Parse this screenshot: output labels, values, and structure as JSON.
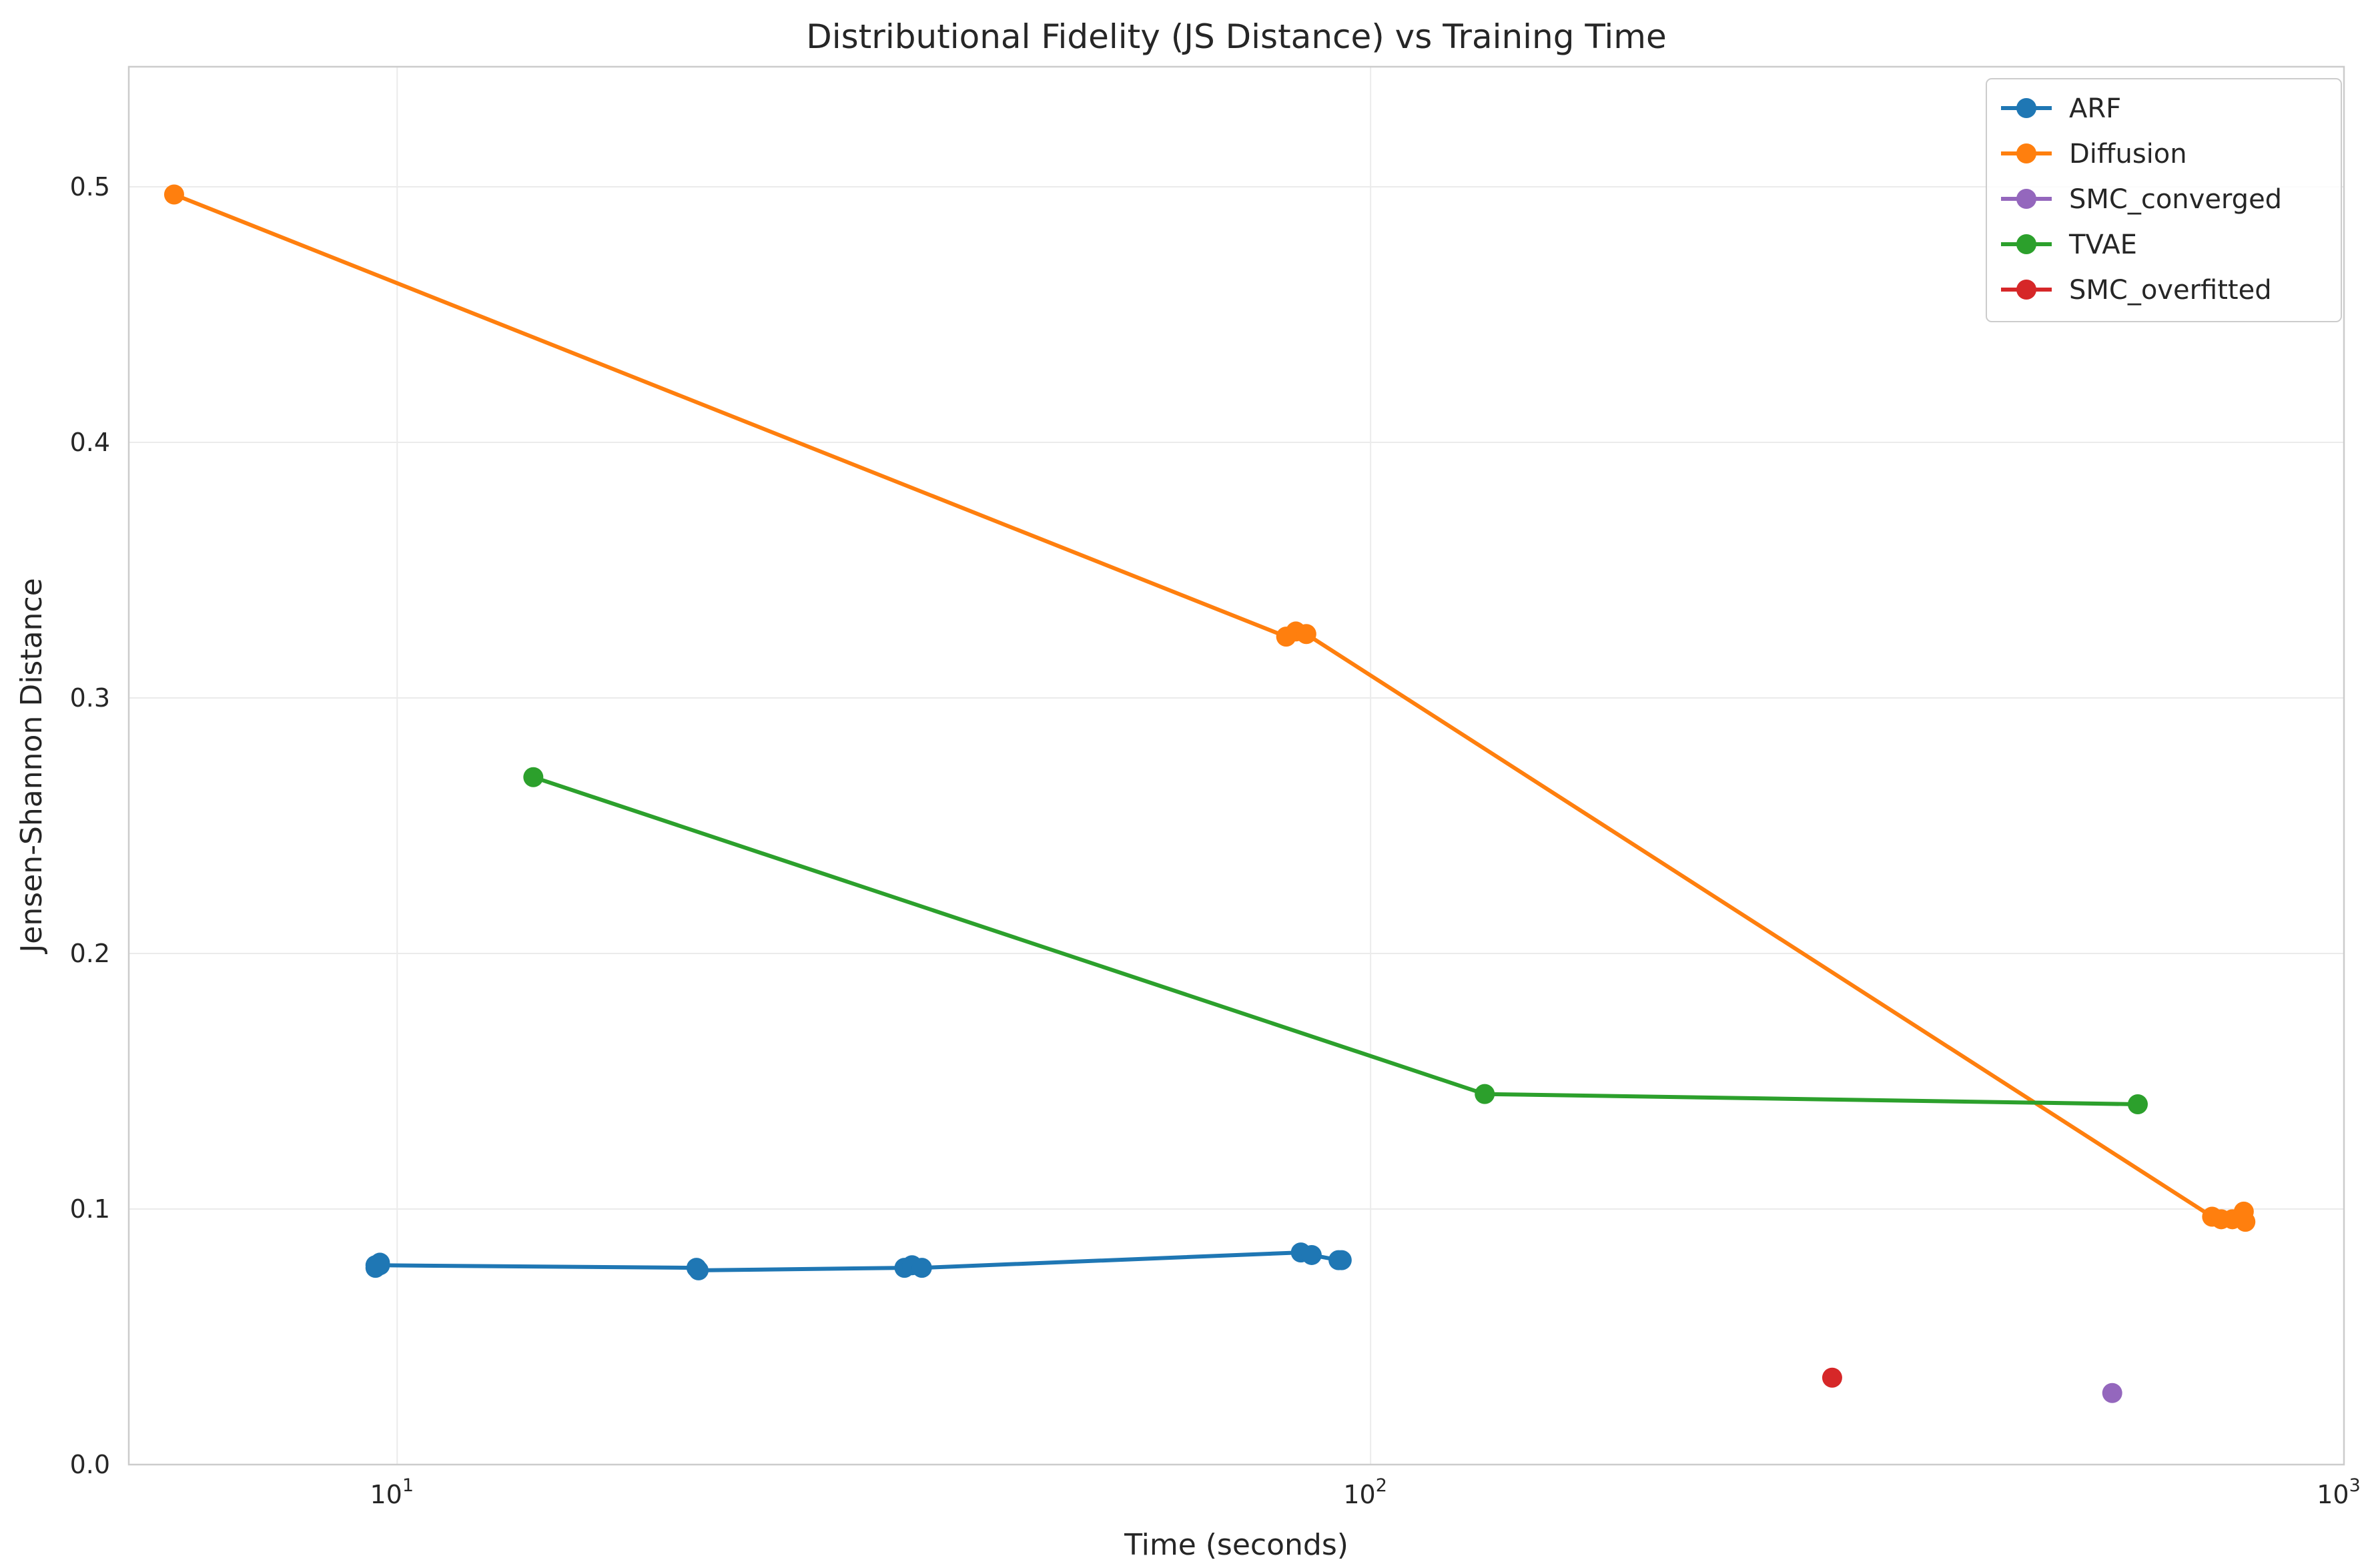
{
  "chart_data": {
    "type": "line",
    "title": "Distributional Fidelity (JS Distance) vs Training Time",
    "xlabel": "Time (seconds)",
    "ylabel": "Jensen-Shannon Distance",
    "xscale": "log",
    "xlim": [
      5.3,
      1000
    ],
    "ylim": [
      0,
      0.547
    ],
    "grid": true,
    "legend_position": "top-right",
    "x_ticks": [
      {
        "value": 10,
        "label": "10",
        "exp": "1"
      },
      {
        "value": 100,
        "label": "10",
        "exp": "2"
      },
      {
        "value": 1000,
        "label": "10",
        "exp": "3"
      }
    ],
    "y_ticks": [
      {
        "value": 0.0,
        "label": "0.0"
      },
      {
        "value": 0.1,
        "label": "0.1"
      },
      {
        "value": 0.2,
        "label": "0.2"
      },
      {
        "value": 0.3,
        "label": "0.3"
      },
      {
        "value": 0.4,
        "label": "0.4"
      },
      {
        "value": 0.5,
        "label": "0.5"
      }
    ],
    "series": [
      {
        "name": "ARF",
        "color": "#1f77b4",
        "line": true,
        "x": [
          9.5,
          9.5,
          9.6,
          9.6,
          20.3,
          20.4,
          33.2,
          33.8,
          34.6,
          84.8,
          87.0,
          92.7,
          93.4
        ],
        "y": [
          0.077,
          0.078,
          0.079,
          0.078,
          0.077,
          0.076,
          0.077,
          0.078,
          0.077,
          0.083,
          0.082,
          0.08,
          0.08
        ]
      },
      {
        "name": "Diffusion",
        "color": "#ff7f0e",
        "line": true,
        "x": [
          5.9,
          81.9,
          83.8,
          85.9,
          732,
          748,
          768,
          789,
          792
        ],
        "y": [
          0.497,
          0.324,
          0.326,
          0.325,
          0.097,
          0.096,
          0.096,
          0.099,
          0.095
        ]
      },
      {
        "name": "SMC_converged",
        "color": "#9467bd",
        "line": false,
        "x": [
          578
        ],
        "y": [
          0.028
        ]
      },
      {
        "name": "TVAE",
        "color": "#2ca02c",
        "line": true,
        "x": [
          13.8,
          131,
          614
        ],
        "y": [
          0.269,
          0.145,
          0.141
        ]
      },
      {
        "name": "SMC_overfitted",
        "color": "#d62728",
        "line": false,
        "x": [
          298
        ],
        "y": [
          0.034
        ]
      }
    ]
  }
}
